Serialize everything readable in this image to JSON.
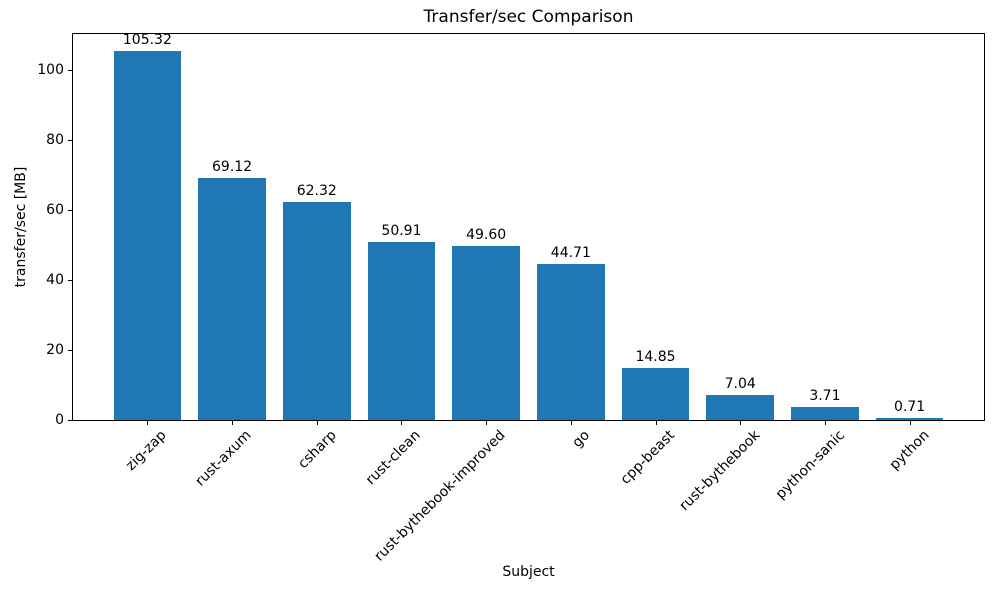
{
  "chart_data": {
    "type": "bar",
    "title": "Transfer/sec Comparison",
    "xlabel": "Subject",
    "ylabel": "transfer/sec [MB]",
    "categories": [
      "zig-zap",
      "rust-axum",
      "csharp",
      "rust-clean",
      "rust-bythebook-improved",
      "go",
      "cpp-beast",
      "rust-bythebook",
      "python-sanic",
      "python"
    ],
    "values": [
      105.32,
      69.12,
      62.32,
      50.91,
      49.6,
      44.71,
      14.85,
      7.04,
      3.71,
      0.71
    ],
    "value_labels": [
      "105.32",
      "69.12",
      "62.32",
      "50.91",
      "49.60",
      "44.71",
      "14.85",
      "7.04",
      "3.71",
      "0.71"
    ],
    "yticks": [
      0,
      20,
      40,
      60,
      80,
      100
    ],
    "ylim": [
      0,
      110.57
    ],
    "xlim": [
      -0.89,
      9.89
    ],
    "bar_width_units": 0.8,
    "bar_color": "#1f77b4",
    "text_color": "#000000",
    "grid": false,
    "legend": "none",
    "x_tick_rotation_deg": 45
  }
}
